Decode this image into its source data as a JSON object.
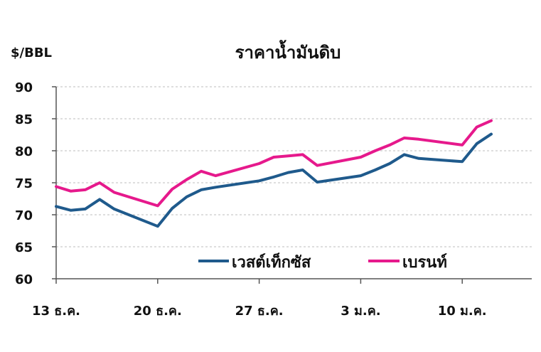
{
  "chart_data": {
    "type": "line",
    "title": "ราคาน้ำมันดิบ",
    "ylabel": "$/BBL",
    "xlabel": "",
    "ylim": [
      60,
      90
    ],
    "yticks": [
      60,
      65,
      70,
      75,
      80,
      85,
      90
    ],
    "x_tick_labels": [
      {
        "label": "13 ธ.ค.",
        "index": 0
      },
      {
        "label": "20 ธ.ค.",
        "index": 7
      },
      {
        "label": "27 ธ.ค.",
        "index": 14
      },
      {
        "label": "3 ม.ค.",
        "index": 21
      },
      {
        "label": "10 ม.ค.",
        "index": 28
      }
    ],
    "grid": true,
    "legend_position": "lower-right",
    "series": [
      {
        "name": "เวสต์เท็กซัส",
        "color": "#1f5a8c",
        "points": [
          [
            0,
            71.3
          ],
          [
            1,
            70.7
          ],
          [
            2,
            70.9
          ],
          [
            3,
            72.4
          ],
          [
            4,
            70.9
          ],
          [
            7,
            68.2
          ],
          [
            8,
            71.0
          ],
          [
            9,
            72.8
          ],
          [
            10,
            73.9
          ],
          [
            11,
            74.3
          ],
          [
            14,
            75.3
          ],
          [
            15,
            75.9
          ],
          [
            16,
            76.6
          ],
          [
            17,
            77.0
          ],
          [
            18,
            75.1
          ],
          [
            21,
            76.1
          ],
          [
            22,
            77.0
          ],
          [
            23,
            78.0
          ],
          [
            24,
            79.4
          ],
          [
            25,
            78.8
          ],
          [
            28,
            78.3
          ],
          [
            29,
            81.1
          ],
          [
            30,
            82.6
          ]
        ]
      },
      {
        "name": "เบรนท์",
        "color": "#e6198c",
        "points": [
          [
            0,
            74.4
          ],
          [
            1,
            73.7
          ],
          [
            2,
            73.9
          ],
          [
            3,
            75.0
          ],
          [
            4,
            73.5
          ],
          [
            7,
            71.4
          ],
          [
            8,
            74.0
          ],
          [
            9,
            75.5
          ],
          [
            10,
            76.8
          ],
          [
            11,
            76.1
          ],
          [
            14,
            78.0
          ],
          [
            15,
            79.0
          ],
          [
            16,
            79.2
          ],
          [
            17,
            79.4
          ],
          [
            18,
            77.7
          ],
          [
            21,
            79.0
          ],
          [
            22,
            80.0
          ],
          [
            23,
            80.9
          ],
          [
            24,
            82.0
          ],
          [
            25,
            81.8
          ],
          [
            28,
            80.9
          ],
          [
            29,
            83.7
          ],
          [
            30,
            84.7
          ]
        ]
      }
    ]
  }
}
